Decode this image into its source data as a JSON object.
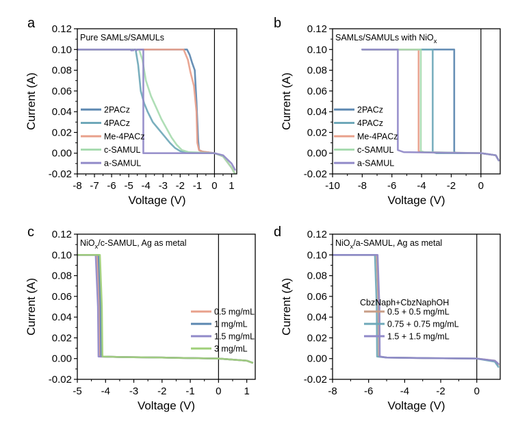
{
  "chart_data": [
    {
      "panel_letter": "a",
      "type": "line",
      "title": "Pure SAMLs/SAMULs",
      "xlabel": "Voltage (V)",
      "ylabel": "Current (A)",
      "xlim": [
        -8,
        1.3
      ],
      "ylim": [
        -0.02,
        0.12
      ],
      "xticks": [
        -8,
        -7,
        -6,
        -5,
        -4,
        -3,
        -2,
        -1,
        0,
        1
      ],
      "yticks": [
        -0.02,
        0.0,
        0.02,
        0.04,
        0.06,
        0.08,
        0.1,
        0.12
      ],
      "zero_line_x": 0,
      "legend_position": "left",
      "series": [
        {
          "name": "2PACz",
          "color": "#5b87b0",
          "x": [
            -8,
            -1.6,
            -1.45,
            -1.3,
            -1.15,
            -1.05,
            -0.95,
            -0.9,
            -0.7,
            0,
            0.5,
            1.0,
            1.2
          ],
          "y": [
            0.1,
            0.1,
            0.095,
            0.087,
            0.08,
            0.05,
            0.012,
            0.003,
            0.0015,
            0.0,
            -0.003,
            -0.014,
            -0.02
          ]
        },
        {
          "name": "4PACz",
          "color": "#6fa8b9",
          "x": [
            -8,
            -4.6,
            -4.45,
            -4.3,
            -4.1,
            -3.9,
            -3.6,
            -3.3,
            -3.0,
            -2.6,
            -2.3,
            -2.0,
            -1.5,
            0,
            0.5,
            1.0,
            1.2
          ],
          "y": [
            0.1,
            0.1,
            0.085,
            0.06,
            0.048,
            0.04,
            0.03,
            0.024,
            0.018,
            0.01,
            0.005,
            0.002,
            0.0005,
            0.0,
            -0.003,
            -0.014,
            -0.02
          ]
        },
        {
          "name": "Me-4PACz",
          "color": "#e8a08b",
          "x": [
            -8,
            -1.8,
            -1.55,
            -1.4,
            -1.2,
            -1.05,
            -1.0,
            -0.9,
            -0.7,
            0,
            0.5,
            1.0,
            1.2
          ],
          "y": [
            0.1,
            0.1,
            0.09,
            0.078,
            0.065,
            0.04,
            0.01,
            0.003,
            0.0015,
            0.0,
            -0.003,
            -0.014,
            -0.02
          ]
        },
        {
          "name": "c-SAMUL",
          "color": "#a8dbb0",
          "x": [
            -8,
            -4.4,
            -4.2,
            -4.0,
            -3.7,
            -3.4,
            -3.1,
            -2.8,
            -2.5,
            -2.2,
            -1.9,
            -1.5,
            0,
            0.5,
            1.0,
            1.2
          ],
          "y": [
            0.1,
            0.1,
            0.09,
            0.07,
            0.055,
            0.044,
            0.033,
            0.024,
            0.015,
            0.008,
            0.003,
            0.001,
            0.0,
            -0.003,
            -0.014,
            -0.02
          ]
        },
        {
          "name": "a-SAMUL",
          "color": "#9089c8",
          "x": [
            -8,
            -5.0,
            -4.9,
            -4.85,
            -4.8,
            -4.75,
            -4.7,
            -4.6,
            -4.55,
            -4.5,
            -4.4,
            -4.3,
            -4.2,
            -4.15,
            -4.15,
            -3.5,
            0,
            0.5,
            1.0,
            1.2
          ],
          "y": [
            0.1,
            0.1,
            0.1,
            0.099,
            0.1,
            0.099,
            0.1,
            0.1,
            0.099,
            0.1,
            0.1,
            0.1,
            0.1,
            0.1,
            0.0,
            0.0,
            0.0,
            -0.002,
            -0.01,
            -0.016
          ]
        }
      ]
    },
    {
      "panel_letter": "b",
      "type": "line",
      "title": "SAMLs/SAMULs with NiOx",
      "title_main": "SAMLs/SAMULs with NiO",
      "title_sub": "x",
      "xlabel": "Voltage (V)",
      "ylabel": "Current (A)",
      "xlim": [
        -10,
        1.3
      ],
      "ylim": [
        -0.02,
        0.12
      ],
      "xticks": [
        -10,
        -8,
        -6,
        -4,
        -2,
        0
      ],
      "yticks": [
        -0.02,
        0.0,
        0.02,
        0.04,
        0.06,
        0.08,
        0.1,
        0.12
      ],
      "zero_line_x": 0,
      "legend_position": "left",
      "series": [
        {
          "name": "2PACz",
          "color": "#5b87b0",
          "x": [
            -8,
            -1.8,
            -1.8,
            -1.6,
            0,
            1.0,
            1.2
          ],
          "y": [
            0.1,
            0.1,
            0.001,
            0.0,
            0.0,
            -0.002,
            -0.007
          ]
        },
        {
          "name": "4PACz",
          "color": "#6fa8b9",
          "x": [
            -8,
            -3.25,
            -3.25,
            -3.0,
            0,
            1.0,
            1.2
          ],
          "y": [
            0.1,
            0.1,
            0.001,
            0.0,
            0.0,
            -0.002,
            -0.007
          ]
        },
        {
          "name": "Me-4PACz",
          "color": "#e8a08b",
          "x": [
            -8,
            -4.2,
            -4.2,
            -4.0,
            0,
            1.0,
            1.2
          ],
          "y": [
            0.1,
            0.1,
            0.002,
            0.001,
            0.0,
            -0.002,
            -0.007
          ]
        },
        {
          "name": "c-SAMUL",
          "color": "#a8dbb0",
          "x": [
            -8,
            -4.05,
            -4.05,
            -3.8,
            0,
            1.0,
            1.2
          ],
          "y": [
            0.1,
            0.1,
            0.002,
            0.001,
            0.0,
            -0.002,
            -0.007
          ]
        },
        {
          "name": "a-SAMUL",
          "color": "#9089c8",
          "x": [
            -8,
            -5.6,
            -5.6,
            -5.2,
            0,
            1.0,
            1.2
          ],
          "y": [
            0.1,
            0.1,
            0.003,
            0.001,
            0.0,
            -0.002,
            -0.007
          ]
        }
      ]
    },
    {
      "panel_letter": "c",
      "type": "line",
      "title": "NiOx/c-SAMUL, Ag as metal",
      "title_main": "NiO",
      "title_sub": "x",
      "title_rest": "/c-SAMUL, Ag as metal",
      "xlabel": "Voltage (V)",
      "ylabel": "Current (A)",
      "xlim": [
        -5,
        1.3
      ],
      "ylim": [
        -0.02,
        0.12
      ],
      "xticks": [
        -5,
        -4,
        -3,
        -2,
        -1,
        0,
        1
      ],
      "yticks": [
        -0.02,
        0.0,
        0.02,
        0.04,
        0.06,
        0.08,
        0.1,
        0.12
      ],
      "zero_line_x": 0,
      "legend_position": "right",
      "series": [
        {
          "name": "0.5 mg/mL",
          "color": "#e8a08b",
          "x": [
            -5,
            -4.3,
            -4.22,
            -4.2,
            -3.5,
            -2.0,
            0,
            1.0,
            1.2
          ],
          "y": [
            0.1,
            0.1,
            0.05,
            0.002,
            0.0015,
            0.001,
            0.0,
            -0.002,
            -0.004
          ]
        },
        {
          "name": "1 mg/mL",
          "color": "#5b87b0",
          "x": [
            -5,
            -4.25,
            -4.18,
            -4.16,
            -3.5,
            -2.0,
            0,
            1.0,
            1.2
          ],
          "y": [
            0.1,
            0.1,
            0.05,
            0.002,
            0.0015,
            0.001,
            0.0,
            -0.002,
            -0.004
          ]
        },
        {
          "name": "1.5 mg/mL",
          "color": "#9089c8",
          "x": [
            -5,
            -4.35,
            -4.27,
            -4.25,
            -3.5,
            -2.0,
            0,
            1.0,
            1.2
          ],
          "y": [
            0.1,
            0.1,
            0.05,
            0.002,
            0.0015,
            0.001,
            0.0,
            -0.002,
            -0.004
          ]
        },
        {
          "name": "3 mg/mL",
          "color": "#9fcf78",
          "x": [
            -5,
            -4.2,
            -4.13,
            -4.11,
            -3.5,
            -2.0,
            0,
            1.0,
            1.2
          ],
          "y": [
            0.1,
            0.1,
            0.05,
            0.002,
            0.0015,
            0.001,
            0.0,
            -0.002,
            -0.004
          ]
        }
      ]
    },
    {
      "panel_letter": "d",
      "type": "line",
      "title": "NiOx/a-SAMUL, Ag as metal",
      "title_main": "NiO",
      "title_sub": "x",
      "title_rest": "/a-SAMUL, Ag as metal",
      "xlabel": "Voltage (V)",
      "ylabel": "Current (A)",
      "xlim": [
        -8,
        1.3
      ],
      "ylim": [
        -0.02,
        0.12
      ],
      "xticks": [
        -8,
        -6,
        -4,
        -2,
        0
      ],
      "yticks": [
        -0.02,
        0.0,
        0.02,
        0.04,
        0.06,
        0.08,
        0.1,
        0.12
      ],
      "zero_line_x": 0,
      "legend_position": "right",
      "legend_title": "CbzNaph+CbzNaphOH",
      "series": [
        {
          "name": "0.5 + 0.5 mg/mL",
          "color": "#c89d86",
          "x": [
            -8,
            -5.55,
            -5.45,
            -5.43,
            -5.0,
            -3.0,
            0,
            1.0,
            1.2
          ],
          "y": [
            0.1,
            0.1,
            0.05,
            0.002,
            0.001,
            0.0005,
            0.0,
            -0.002,
            -0.006
          ]
        },
        {
          "name": "0.75 + 0.75 mg/mL",
          "color": "#6fa8b9",
          "x": [
            -8,
            -5.65,
            -5.55,
            -5.53,
            -5.0,
            -3.0,
            0,
            1.0,
            1.2
          ],
          "y": [
            0.1,
            0.1,
            0.05,
            0.002,
            0.001,
            0.0005,
            0.0,
            -0.003,
            -0.008
          ]
        },
        {
          "name": "1.5 + 1.5 mg/mL",
          "color": "#9089c8",
          "x": [
            -8,
            -5.5,
            -5.4,
            -5.38,
            -5.0,
            -3.0,
            0,
            1.0,
            1.2
          ],
          "y": [
            0.1,
            0.1,
            0.05,
            0.002,
            0.001,
            0.0005,
            0.0,
            -0.002,
            -0.005
          ]
        }
      ]
    }
  ]
}
